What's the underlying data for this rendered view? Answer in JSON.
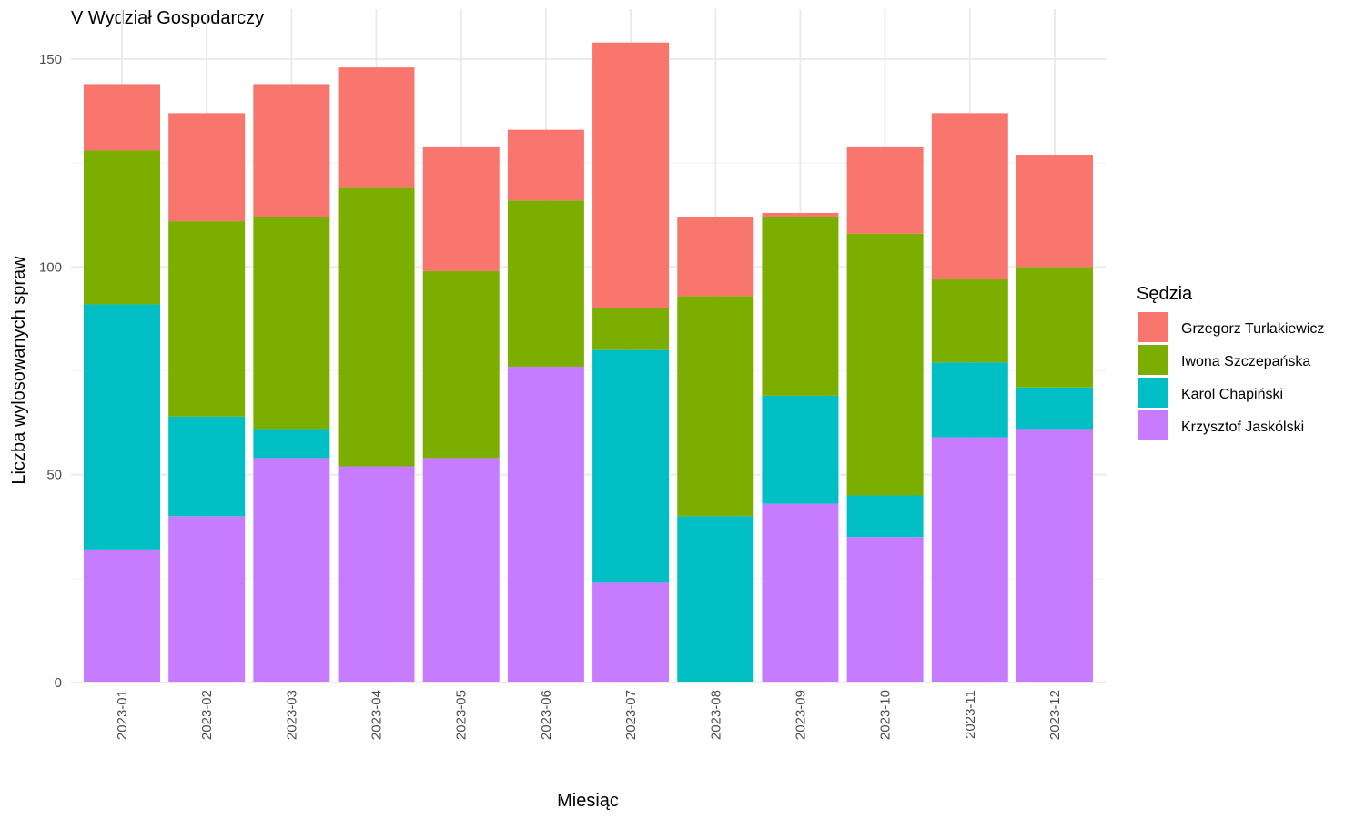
{
  "chart_data": {
    "type": "bar",
    "stacked": true,
    "title": "V Wydział Gospodarczy",
    "xlabel": "Miesiąc",
    "ylabel": "Liczba wylosowanych spraw",
    "ylim": [
      0,
      160
    ],
    "yticks": [
      0,
      50,
      100,
      150
    ],
    "grid": true,
    "legend_position": "right",
    "legend_title": "Sędzia",
    "categories": [
      "2023-01",
      "2023-02",
      "2023-03",
      "2023-04",
      "2023-05",
      "2023-06",
      "2023-07",
      "2023-08",
      "2023-09",
      "2023-10",
      "2023-11",
      "2023-12"
    ],
    "series": [
      {
        "name": "Krzysztof Jaskólski",
        "color": "#C77CFF",
        "values": [
          32,
          40,
          54,
          52,
          54,
          76,
          24,
          0,
          43,
          35,
          59,
          61
        ]
      },
      {
        "name": "Karol Chapiński",
        "color": "#00BFC4",
        "values": [
          59,
          24,
          7,
          0,
          0,
          0,
          56,
          40,
          26,
          10,
          18,
          10
        ]
      },
      {
        "name": "Iwona Szczepańska",
        "color": "#7CAE00",
        "values": [
          37,
          47,
          51,
          67,
          45,
          40,
          10,
          53,
          43,
          63,
          20,
          29
        ]
      },
      {
        "name": "Grzegorz Turlakiewicz",
        "color": "#F8766D",
        "values": [
          16,
          26,
          32,
          29,
          30,
          17,
          64,
          19,
          1,
          21,
          40,
          27
        ]
      }
    ],
    "legend_order": [
      "Grzegorz Turlakiewicz",
      "Iwona Szczepańska",
      "Karol Chapiński",
      "Krzysztof Jaskólski"
    ]
  }
}
